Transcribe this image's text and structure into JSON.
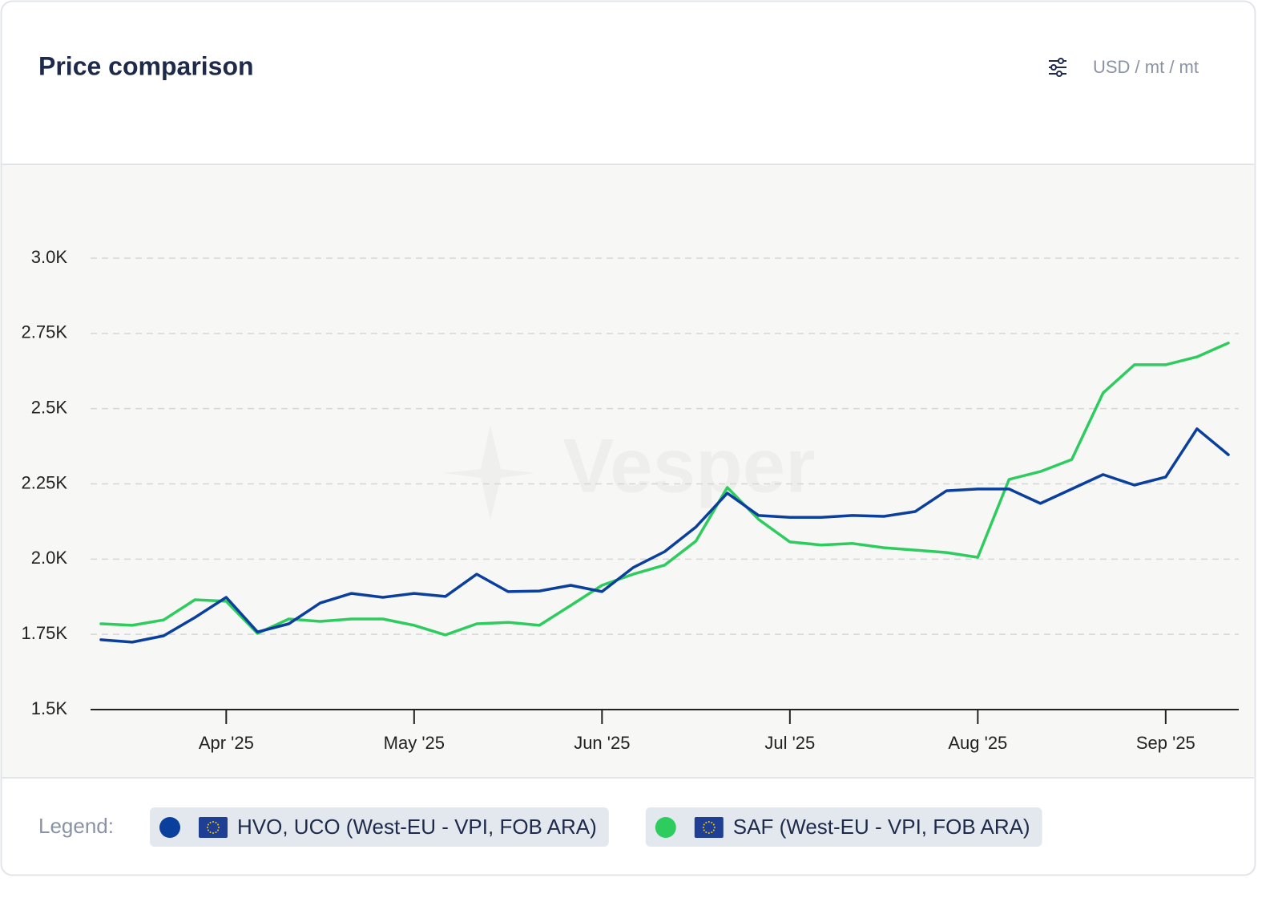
{
  "chart_data": {
    "type": "line",
    "title": "Price comparison",
    "unit": "USD / mt / mt",
    "watermark": "Vesper",
    "legend_label": "Legend:",
    "categories": [
      null,
      null,
      null,
      null,
      "Apr '25",
      null,
      null,
      null,
      null,
      null,
      "May '25",
      null,
      null,
      null,
      null,
      null,
      "Jun '25",
      null,
      null,
      null,
      null,
      null,
      "Jul '25",
      null,
      null,
      null,
      null,
      null,
      "Aug '25",
      null,
      null,
      null,
      null,
      null,
      "Sep '25",
      null,
      null
    ],
    "series": [
      {
        "name": "HVO, UCO (West-EU - VPI, FOB ARA)",
        "color": "#0b3f9e",
        "values": [
          1732,
          1724,
          1745,
          1806,
          1873,
          1758,
          1785,
          1854,
          1886,
          1873,
          1886,
          1876,
          1950,
          1892,
          1894,
          1913,
          1892,
          1972,
          2025,
          2107,
          2219,
          2145,
          2139,
          2139,
          2145,
          2142,
          2158,
          2227,
          2233,
          2233,
          2185,
          2233,
          2281,
          2246,
          2273,
          2433,
          2347
        ]
      },
      {
        "name": "SAF (West-EU - VPI, FOB ARA)",
        "color": "#2ecc5f",
        "values": [
          1785,
          1780,
          1798,
          1865,
          1860,
          1753,
          1801,
          1793,
          1801,
          1801,
          1780,
          1748,
          1785,
          1790,
          1780,
          1846,
          1913,
          1950,
          1980,
          2060,
          2238,
          2132,
          2057,
          2047,
          2052,
          2038,
          2030,
          2022,
          2006,
          2265,
          2291,
          2331,
          2552,
          2646,
          2646,
          2672,
          2718
        ]
      }
    ],
    "ylim": [
      1500,
      3000
    ],
    "yticks": [
      {
        "value": 1500,
        "label": "1.5K"
      },
      {
        "value": 1750,
        "label": "1.75K"
      },
      {
        "value": 2000,
        "label": "2.0K"
      },
      {
        "value": 2250,
        "label": "2.25K"
      },
      {
        "value": 2500,
        "label": "2.5K"
      },
      {
        "value": 2750,
        "label": "2.75K"
      },
      {
        "value": 3000,
        "label": "3.0K"
      }
    ],
    "grid": true
  }
}
